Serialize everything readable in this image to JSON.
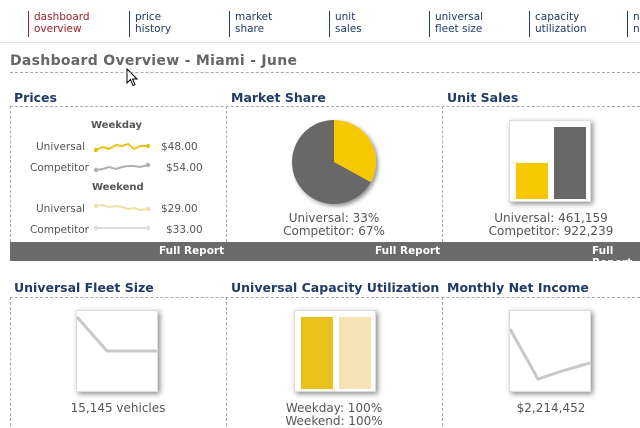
{
  "nav": {
    "items": [
      {
        "label": "dashboard\noverview",
        "active": true
      },
      {
        "label": "price\nhistory",
        "active": false
      },
      {
        "label": "market\nshare",
        "active": false
      },
      {
        "label": "unit\nsales",
        "active": false
      },
      {
        "label": "universal\nfleet size",
        "active": false
      },
      {
        "label": "capacity\nutilization",
        "active": false
      },
      {
        "label": "n\nn",
        "active": false
      }
    ]
  },
  "page": {
    "title": "Dashboard Overview - Miami - June"
  },
  "colors": {
    "universal": "#f5c800",
    "competitor": "#686868",
    "nav": "#1f3b66",
    "active": "#a0202a"
  },
  "panels": {
    "prices": {
      "title": "Prices",
      "weekday_label": "Weekday",
      "weekend_label": "Weekend",
      "rows": [
        {
          "name": "Universal",
          "value": "$48.00"
        },
        {
          "name": "Competitor",
          "value": "$54.00"
        },
        {
          "name": "Universal",
          "value": "$29.00"
        },
        {
          "name": "Competitor",
          "value": "$33.00"
        }
      ],
      "footer": "Full Report"
    },
    "market_share": {
      "title": "Market Share",
      "universal": "Universal: 33%",
      "competitor": "Competitor: 67%",
      "footer": "Full Report"
    },
    "unit_sales": {
      "title": "Unit Sales",
      "universal": "Universal: 461,159",
      "competitor": "Competitor: 922,239",
      "footer": "Full Report"
    },
    "fleet_size": {
      "title": "Universal Fleet Size",
      "caption": "15,145 vehicles"
    },
    "capacity": {
      "title": "Universal Capacity Utilization",
      "weekday": "Weekday: 100%",
      "weekend": "Weekend: 100%"
    },
    "net_income": {
      "title": "Monthly Net Income",
      "caption": "$2,214,452"
    }
  },
  "chart_data": [
    {
      "type": "pie",
      "categories": [
        "Universal",
        "Competitor"
      ],
      "values": [
        33,
        67
      ]
    },
    {
      "type": "bar",
      "categories": [
        "Universal",
        "Competitor"
      ],
      "values": [
        461159,
        922239
      ]
    },
    {
      "type": "bar",
      "categories": [
        "Weekday",
        "Weekend"
      ],
      "values": [
        100,
        100
      ]
    }
  ]
}
